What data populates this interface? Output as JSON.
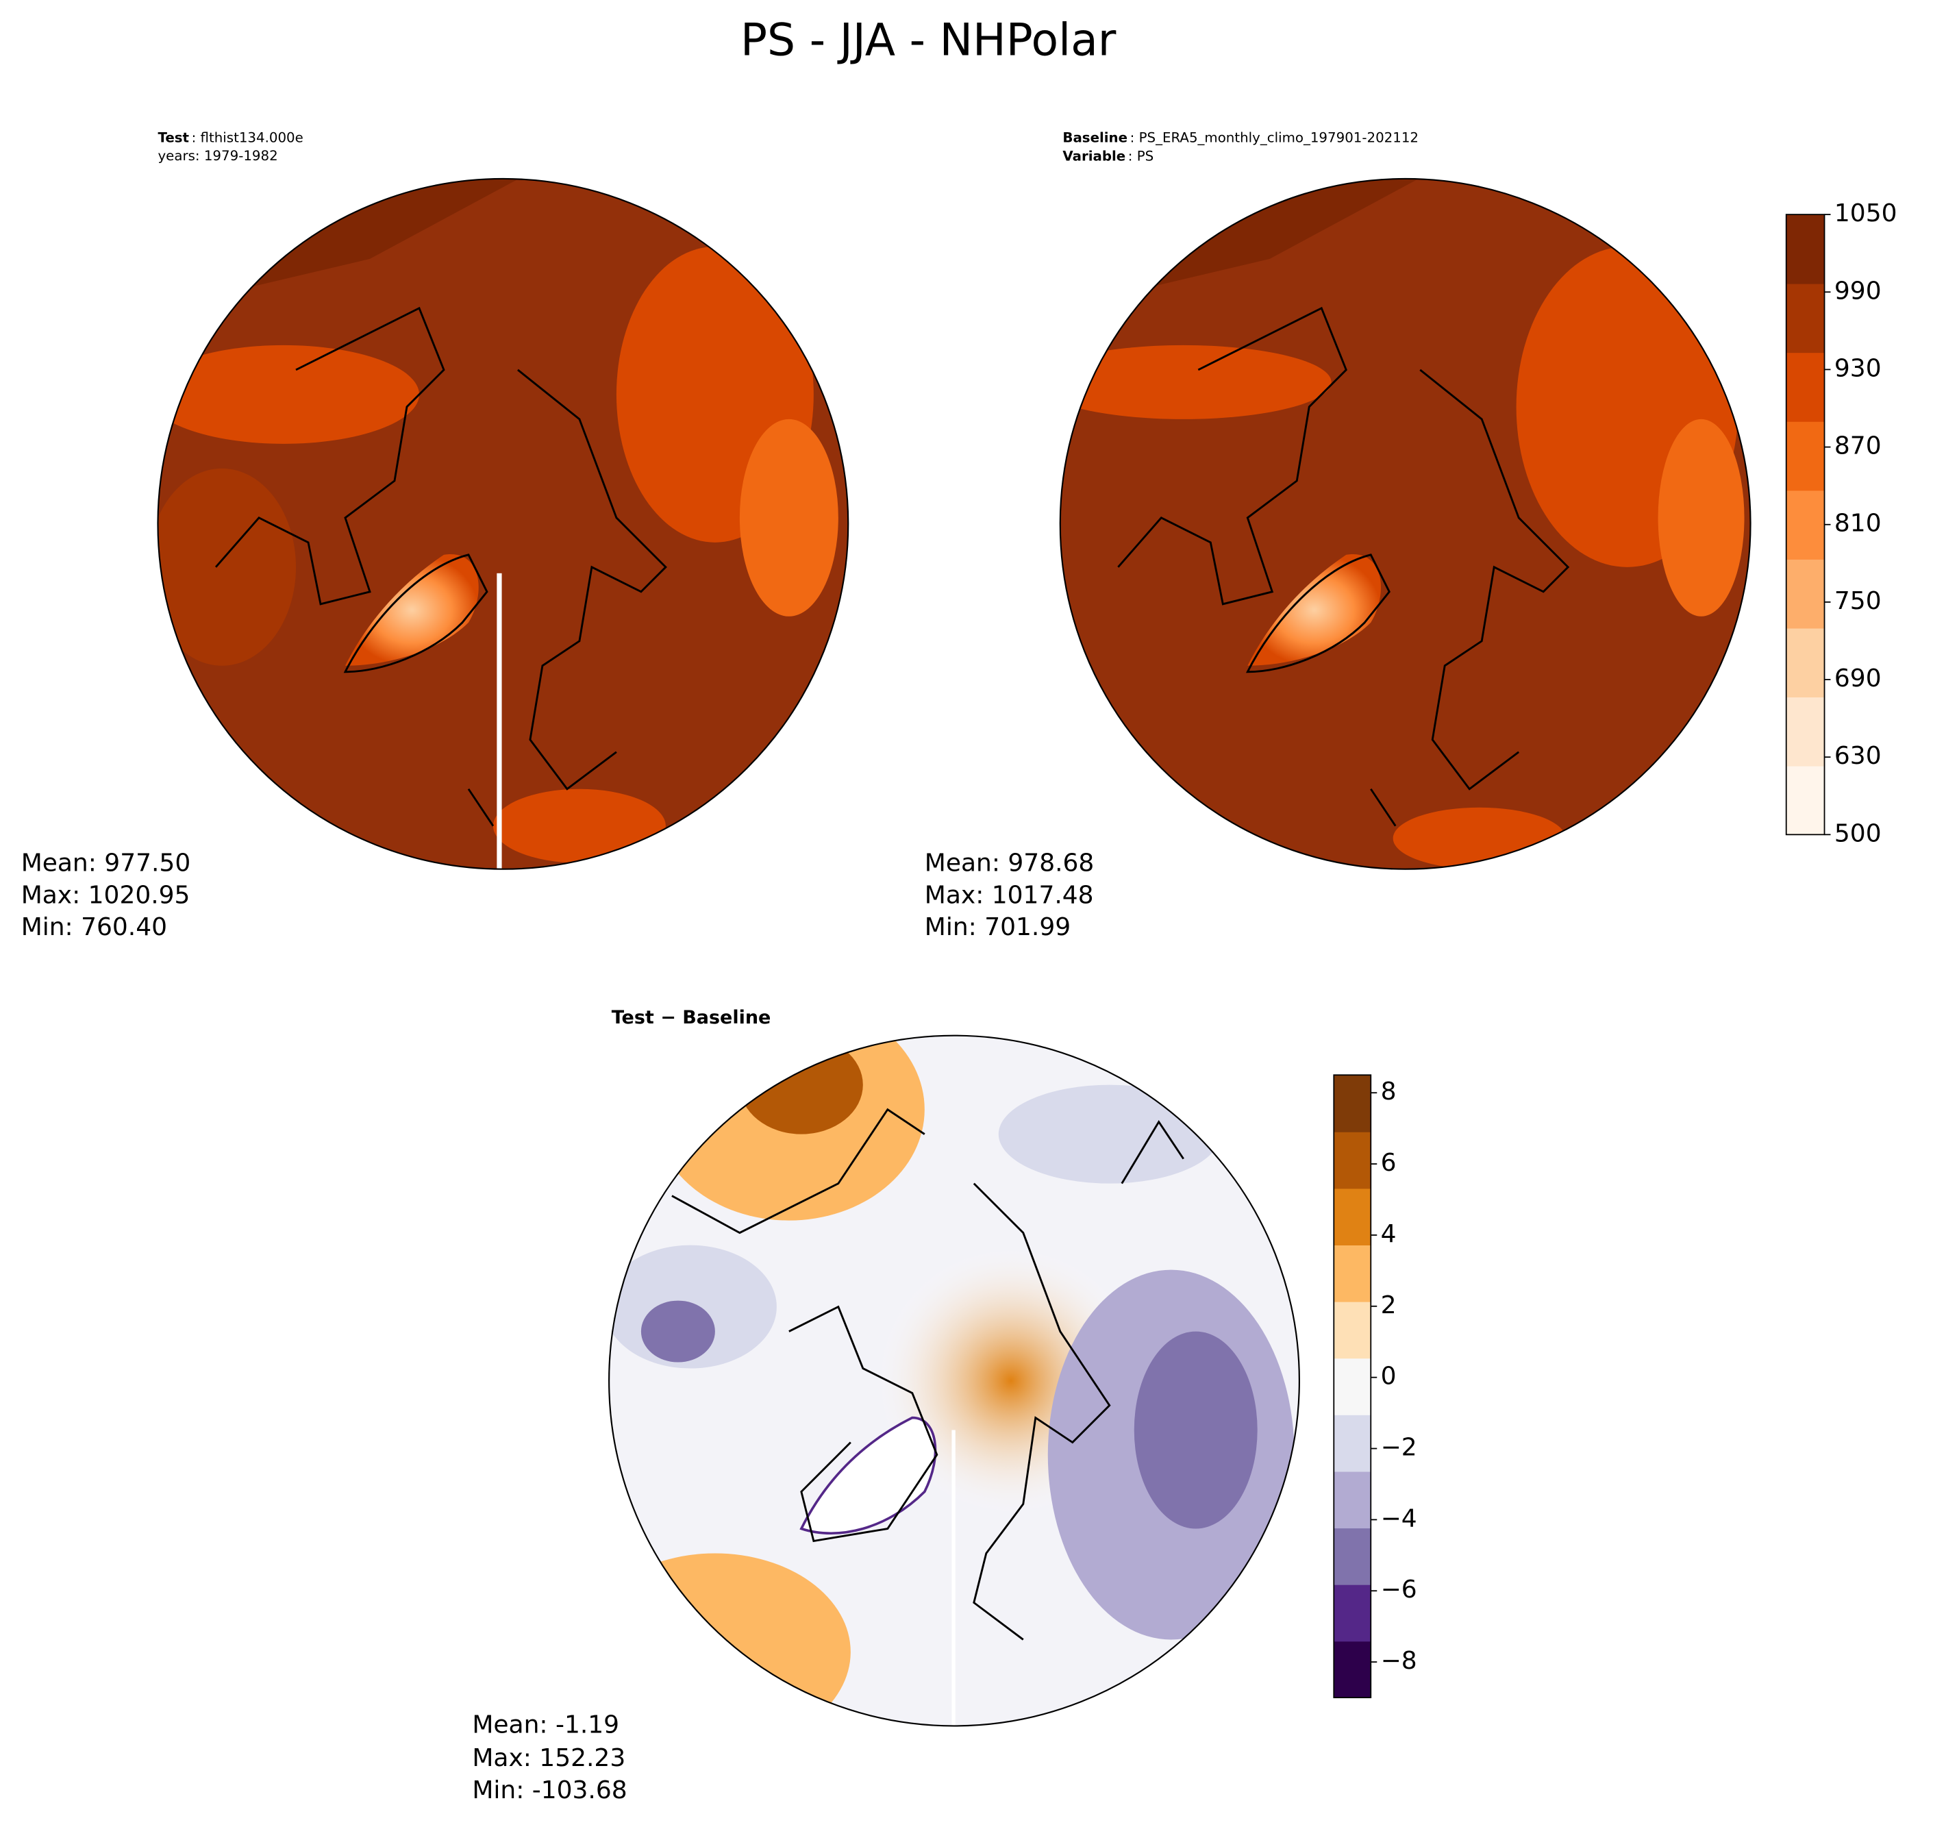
{
  "title": "PS - JJA - NHPolar",
  "panels": [
    {
      "label_key": "Test",
      "label_value": ": flthist134.000e",
      "sublabel": "years: 1979-1982",
      "stats": [
        "Mean: 977.50",
        "Max: 1020.95",
        "Min: 760.40"
      ]
    },
    {
      "label_key": "Baseline",
      "label_value": ": PS_ERA5_monthly_climo_197901-202112",
      "sublabel_key": "Variable",
      "sublabel_value": ": PS",
      "stats": [
        "Mean: 978.68",
        "Max: 1017.48",
        "Min: 701.99"
      ]
    },
    {
      "label": "Test − Baseline",
      "stats": [
        "Mean: -1.19",
        "Max: 152.23",
        "Min: -103.68"
      ]
    }
  ],
  "colorbars": [
    {
      "ticks": [
        500,
        630,
        690,
        750,
        810,
        870,
        930,
        990,
        1050
      ],
      "colors": [
        "#fff5eb",
        "#fee6ce",
        "#fdd0a2",
        "#fdae6b",
        "#fd8d3c",
        "#f16913",
        "#d94801",
        "#a63603",
        "#7f2704"
      ]
    },
    {
      "ylim": [
        -9,
        8.5
      ],
      "ticks": [
        {
          "value": -8,
          "label": "−8"
        },
        {
          "value": -6,
          "label": "−6"
        },
        {
          "value": -4,
          "label": "−4"
        },
        {
          "value": -2,
          "label": "−2"
        },
        0,
        2,
        4,
        6,
        8
      ],
      "colors": [
        "#2d004b",
        "#542788",
        "#8073ac",
        "#b2abd2",
        "#d8daeb",
        "#f7f7f7",
        "#fee0b6",
        "#fdb863",
        "#e08214",
        "#b35806",
        "#7f3b08"
      ]
    }
  ]
}
